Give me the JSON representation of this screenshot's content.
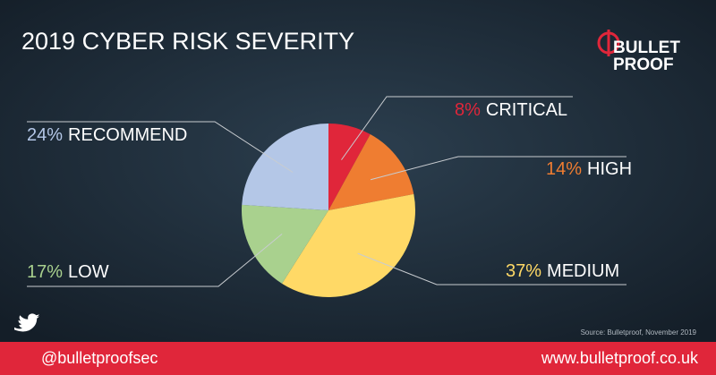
{
  "chart_data": {
    "type": "pie",
    "title": "2019 CYBER RISK SEVERITY",
    "categories": [
      "CRITICAL",
      "HIGH",
      "MEDIUM",
      "LOW",
      "RECOMMEND"
    ],
    "values": [
      8,
      14,
      37,
      17,
      24
    ],
    "value_labels": [
      "8%",
      "14%",
      "37%",
      "17%",
      "24%"
    ],
    "colors": [
      "#e0263a",
      "#ef7d31",
      "#ffd966",
      "#a9d18e",
      "#b4c7e7"
    ],
    "source": "Source: Bulletproof, November 2019"
  },
  "logo": {
    "line1": "BULLET",
    "line2": "PROOF"
  },
  "footer": {
    "twitter": "@bulletproofsec",
    "website": "www.bulletproof.co.uk"
  }
}
